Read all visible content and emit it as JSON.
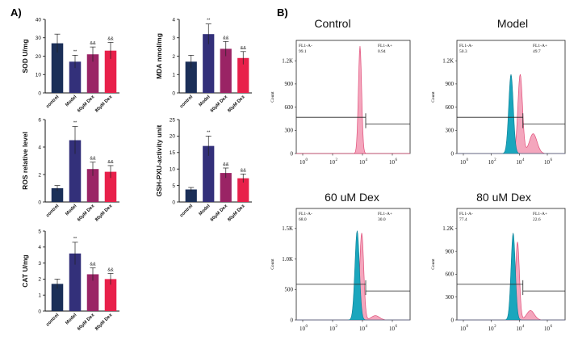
{
  "panels": {
    "a": "A)",
    "b": "B)"
  },
  "colors": {
    "control": "#1b2f58",
    "model": "#33307a",
    "dex60": "#9a2465",
    "dex80": "#e8204a",
    "pink_fill": "#f4a6bd",
    "pink_line": "#e0507a",
    "cyan_fill": "#1aa6bd",
    "cyan_line": "#0d7f95"
  },
  "chart_data": [
    {
      "type": "bar",
      "ylabel": "SOD U/mg",
      "ylim": [
        0,
        40
      ],
      "yticks": [
        "0",
        "10",
        "20",
        "30",
        "40"
      ],
      "categories": [
        "control",
        "Model",
        "60μM Dex",
        "80μM Dex"
      ],
      "values": [
        27,
        17,
        21,
        23
      ],
      "errors": [
        5,
        3.5,
        4,
        4.5
      ],
      "annotations": [
        "",
        "**",
        "&&",
        "&&"
      ]
    },
    {
      "type": "bar",
      "ylabel": "MDA nmol/mg",
      "ylim": [
        0,
        4
      ],
      "yticks": [
        "0",
        "1",
        "2",
        "3",
        "4"
      ],
      "categories": [
        "control",
        "Model",
        "60μM Dex",
        "80μM Dex"
      ],
      "values": [
        1.7,
        3.2,
        2.4,
        1.9
      ],
      "errors": [
        0.35,
        0.55,
        0.4,
        0.35
      ],
      "annotations": [
        "",
        "**",
        "&&",
        "&&"
      ]
    },
    {
      "type": "bar",
      "ylabel": "ROS relative level",
      "ylim": [
        0,
        6
      ],
      "yticks": [
        "0",
        "2",
        "4",
        "6"
      ],
      "categories": [
        "control",
        "Model",
        "60μM Dex",
        "80μM Dex"
      ],
      "values": [
        1,
        4.5,
        2.4,
        2.2
      ],
      "errors": [
        0.2,
        1.0,
        0.5,
        0.45
      ],
      "annotations": [
        "",
        "**",
        "&&",
        "&&"
      ]
    },
    {
      "type": "bar",
      "ylabel": "GSH-PXU-activity unit",
      "ylim": [
        0,
        25
      ],
      "yticks": [
        "0",
        "5",
        "10",
        "15",
        "20",
        "25"
      ],
      "categories": [
        "control",
        "Model",
        "60μM Dex",
        "80μM Dex"
      ],
      "values": [
        3.8,
        17,
        8.8,
        7.2
      ],
      "errors": [
        0.6,
        3.0,
        1.5,
        1.3
      ],
      "annotations": [
        "",
        "**",
        "&&",
        "&&"
      ]
    },
    {
      "type": "bar",
      "ylabel": "CAT U/mg",
      "ylim": [
        0,
        5
      ],
      "yticks": [
        "0",
        "1",
        "2",
        "3",
        "4",
        "5"
      ],
      "categories": [
        "control",
        "Model",
        "60μM Dex",
        "80μM Dex"
      ],
      "values": [
        1.7,
        3.6,
        2.3,
        2.0
      ],
      "errors": [
        0.3,
        0.7,
        0.4,
        0.35
      ],
      "annotations": [
        "",
        "**",
        "&&",
        "&&"
      ]
    }
  ],
  "histograms": [
    {
      "title": "Control",
      "ymax_label": "1.2K",
      "yticks": [
        "0",
        "300",
        "600",
        "900",
        "1.2K"
      ],
      "gate_left": "FL1-A-",
      "gate_left_val": "99.1",
      "gate_right": "FL1-A+",
      "gate_right_val": "0.94",
      "xlabel": "",
      "ylabel": "Count"
    },
    {
      "title": "Model",
      "yticks": [
        "0",
        "300",
        "600",
        "900",
        "1.2K"
      ],
      "gate_left": "FL1-A-",
      "gate_left_val": "50.3",
      "gate_right": "FL1-A+",
      "gate_right_val": "49.7",
      "xlabel": "",
      "ylabel": "Count"
    },
    {
      "title": "60 uM Dex",
      "yticks": [
        "0",
        "500",
        "1.0K",
        "1.5K"
      ],
      "gate_left": "FL1-A-",
      "gate_left_val": "68.0",
      "gate_right": "FL1-A+",
      "gate_right_val": "30.0",
      "xlabel": "",
      "ylabel": "Count"
    },
    {
      "title": "80 uM Dex",
      "yticks": [
        "0",
        "300",
        "600",
        "900",
        "1.2K"
      ],
      "gate_left": "FL1-A-",
      "gate_left_val": "77.4",
      "gate_right": "FL1-A+",
      "gate_right_val": "22.6",
      "xlabel": "",
      "ylabel": "Count"
    }
  ],
  "xdecades": [
    "0",
    "2",
    "4",
    "6"
  ]
}
